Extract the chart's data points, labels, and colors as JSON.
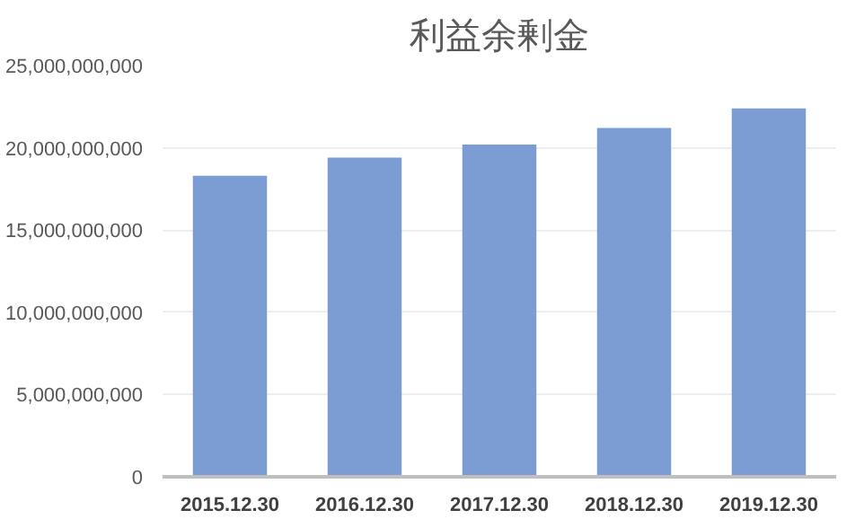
{
  "chart_data": {
    "type": "bar",
    "title": "利益余剰金",
    "categories": [
      "2015.12.30",
      "2016.12.30",
      "2017.12.30",
      "2018.12.30",
      "2019.12.30"
    ],
    "values": [
      18300000000,
      19400000000,
      20200000000,
      21200000000,
      22400000000
    ],
    "color": "#7b9dd3",
    "ylim": [
      0,
      25000000000
    ],
    "yticks": [
      {
        "value": 0,
        "label": "0"
      },
      {
        "value": 5000000000,
        "label": "5,000,000,000"
      },
      {
        "value": 10000000000,
        "label": "10,000,000,000"
      },
      {
        "value": 15000000000,
        "label": "15,000,000,000"
      },
      {
        "value": 20000000000,
        "label": "20,000,000,000"
      },
      {
        "value": 25000000000,
        "label": "25,000,000,000"
      }
    ],
    "grid": "y",
    "legend": false
  }
}
